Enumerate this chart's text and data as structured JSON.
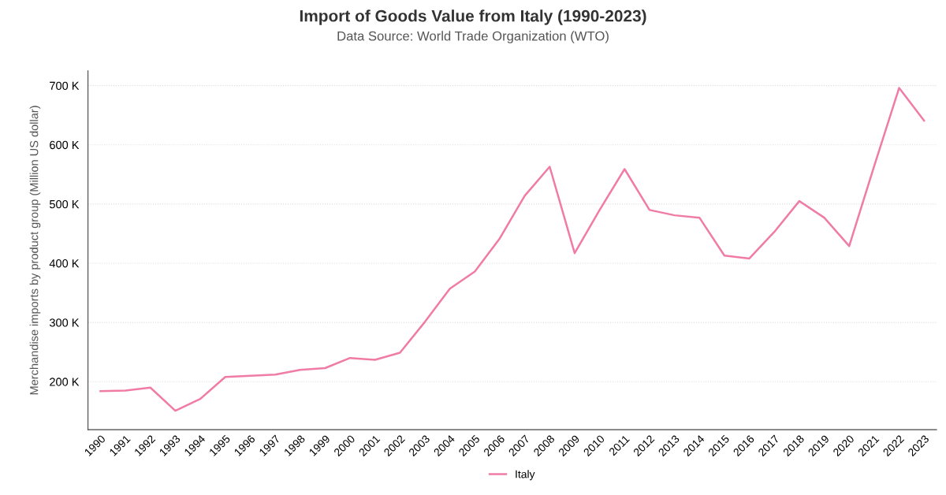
{
  "chart_data": {
    "type": "line",
    "title": "Import of Goods Value from Italy (1990-2023)",
    "subtitle": "Data Source: World Trade Organization (WTO)",
    "ylabel": "Merchandise imports by product group (Million US dollar)",
    "categories": [
      "1990",
      "1991",
      "1992",
      "1993",
      "1994",
      "1995",
      "1996",
      "1997",
      "1998",
      "1999",
      "2000",
      "2001",
      "2002",
      "2003",
      "2004",
      "2005",
      "2006",
      "2007",
      "2008",
      "2009",
      "2010",
      "2011",
      "2012",
      "2013",
      "2014",
      "2015",
      "2016",
      "2017",
      "2018",
      "2019",
      "2020",
      "2021",
      "2022",
      "2023"
    ],
    "series": [
      {
        "name": "Italy",
        "color": "#f07ca6",
        "values": [
          184000,
          185000,
          190000,
          151000,
          171000,
          208000,
          210000,
          212000,
          220000,
          223000,
          240000,
          237000,
          249000,
          301000,
          357000,
          386000,
          442000,
          514000,
          563000,
          417000,
          490000,
          559000,
          490000,
          481000,
          477000,
          413000,
          408000,
          453000,
          505000,
          477000,
          429000,
          564000,
          696000,
          641000
        ]
      }
    ],
    "ylim": [
      119000,
      725000
    ],
    "yticks": [
      {
        "value": 200000,
        "label": "200 K"
      },
      {
        "value": 300000,
        "label": "300 K"
      },
      {
        "value": 400000,
        "label": "400 K"
      },
      {
        "value": 500000,
        "label": "500 K"
      },
      {
        "value": 600000,
        "label": "600 K"
      },
      {
        "value": 700000,
        "label": "700 K"
      }
    ],
    "grid": "y",
    "legend": "bottom",
    "marker": "none",
    "line_style": "solid"
  }
}
